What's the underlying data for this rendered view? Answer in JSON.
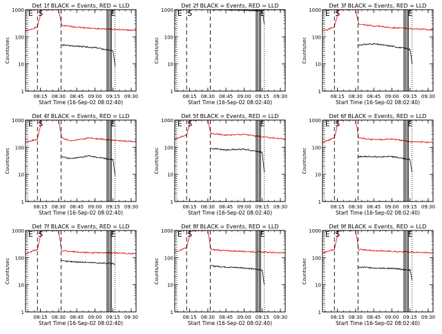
{
  "chart_data": [
    {
      "type": "line",
      "title": "Det 1f BLACK = Events, RED = LLD",
      "ylabel": "Counts/sec",
      "xlabel": "Start Time (16-Sep-02 08:02:40)",
      "xticks": [
        "08:15",
        "08:30",
        "08:45",
        "09:00",
        "09:15",
        "09:30"
      ],
      "xlim": [
        "08:02:40",
        "09:34:00"
      ],
      "yscale": "log",
      "ylim": [
        1,
        1000
      ],
      "yticks": [
        "1",
        "10",
        "100",
        "1000"
      ],
      "markers": [
        {
          "label": "E",
          "time": "08:04:20",
          "style": "dotted"
        },
        {
          "label": "S",
          "time": "08:12:30",
          "style": "dashed"
        },
        {
          "label": "",
          "time": "08:32:00",
          "style": "dashed"
        },
        {
          "label": "",
          "time": "09:10:00",
          "style": "solid"
        },
        {
          "label": "E",
          "time": "09:12:30",
          "style": "solid"
        },
        {
          "label": "",
          "time": "09:16:40",
          "style": "dotted"
        }
      ],
      "series": [
        {
          "color": "#e00000",
          "x": [
            "08:02:40",
            "08:12:30",
            "08:16:00",
            "08:30:00",
            "08:32:30",
            "08:45:00",
            "09:00:00",
            "09:15:00",
            "09:34:00"
          ],
          "y": [
            160,
            230,
            1000,
            1000,
            260,
            230,
            200,
            190,
            170
          ]
        },
        {
          "color": "#000000",
          "x": [
            "08:32:30",
            "08:45:00",
            "09:00:00",
            "09:15:00",
            "09:16:40"
          ],
          "y": [
            50,
            45,
            40,
            30,
            8
          ]
        }
      ]
    },
    {
      "type": "line",
      "title": "Det 2f BLACK = Events, RED = LLD",
      "ylabel": "Counts/sec",
      "xlabel": "Start Time (16-Sep-02 08:02:40)",
      "xticks": [
        "08:15",
        "08:30",
        "08:45",
        "09:00",
        "09:15",
        "09:30"
      ],
      "xlim": [
        "08:02:40",
        "09:34:00"
      ],
      "yscale": "log",
      "ylim": [
        1,
        1000
      ],
      "yticks": [
        "1",
        "10",
        "100",
        "1000"
      ],
      "markers": [
        {
          "label": "E",
          "time": "08:04:20",
          "style": "dotted"
        },
        {
          "label": "S",
          "time": "08:12:30",
          "style": "dashed"
        },
        {
          "label": "",
          "time": "08:32:00",
          "style": "dashed"
        },
        {
          "label": "",
          "time": "09:10:00",
          "style": "solid"
        },
        {
          "label": "E",
          "time": "09:12:30",
          "style": "solid"
        },
        {
          "label": "",
          "time": "09:16:40",
          "style": "dotted"
        }
      ],
      "series": [
        {
          "color": "#e00000",
          "x": [
            "08:02:40",
            "08:12:30",
            "08:16:00",
            "08:30:00",
            "08:32:30",
            "09:00:00",
            "09:34:00"
          ],
          "y": [
            1000,
            1100,
            1400,
            1400,
            1100,
            1000,
            1000
          ]
        },
        {
          "color": "#000000",
          "x": [
            "08:32:30",
            "09:00:00",
            "09:15:00",
            "09:16:40"
          ],
          "y": [
            1000,
            950,
            900,
            300
          ]
        }
      ]
    },
    {
      "type": "line",
      "title": "Det 3f BLACK = Events, RED = LLD",
      "ylabel": "Counts/sec",
      "xlabel": "Start Time (16-Sep-02 08:02:40)",
      "xticks": [
        "08:15",
        "08:30",
        "08:45",
        "09:00",
        "09:15",
        "09:30"
      ],
      "xlim": [
        "08:02:40",
        "09:34:00"
      ],
      "yscale": "log",
      "ylim": [
        1,
        1000
      ],
      "yticks": [
        "1",
        "10",
        "100",
        "1000"
      ],
      "markers": [
        {
          "label": "E",
          "time": "08:04:20",
          "style": "dotted"
        },
        {
          "label": "S",
          "time": "08:12:30",
          "style": "dashed"
        },
        {
          "label": "",
          "time": "08:32:00",
          "style": "dashed"
        },
        {
          "label": "",
          "time": "09:10:00",
          "style": "solid"
        },
        {
          "label": "E",
          "time": "09:12:30",
          "style": "solid"
        },
        {
          "label": "",
          "time": "09:16:40",
          "style": "dotted"
        }
      ],
      "series": [
        {
          "color": "#e00000",
          "x": [
            "08:02:40",
            "08:12:30",
            "08:16:00",
            "08:30:00",
            "08:32:30",
            "08:45:00",
            "09:00:00",
            "09:15:00",
            "09:34:00"
          ],
          "y": [
            160,
            230,
            1000,
            1000,
            300,
            250,
            220,
            200,
            180
          ]
        },
        {
          "color": "#000000",
          "x": [
            "08:32:30",
            "08:45:00",
            "09:00:00",
            "09:15:00",
            "09:16:40"
          ],
          "y": [
            50,
            55,
            45,
            35,
            10
          ]
        }
      ]
    },
    {
      "type": "line",
      "title": "Det 4f BLACK = Events, RED = LLD",
      "ylabel": "Counts/sec",
      "xlabel": "Start Time (16-Sep-02 08:02:40)",
      "xticks": [
        "08:15",
        "08:30",
        "08:45",
        "09:00",
        "09:15",
        "09:30"
      ],
      "xlim": [
        "08:02:40",
        "09:34:00"
      ],
      "yscale": "log",
      "ylim": [
        1,
        1000
      ],
      "yticks": [
        "1",
        "10",
        "100",
        "1000"
      ],
      "markers": [
        {
          "label": "E",
          "time": "08:04:20",
          "style": "dotted"
        },
        {
          "label": "S",
          "time": "08:12:30",
          "style": "dashed"
        },
        {
          "label": "",
          "time": "08:32:00",
          "style": "dashed"
        },
        {
          "label": "",
          "time": "09:10:00",
          "style": "solid"
        },
        {
          "label": "E",
          "time": "09:12:30",
          "style": "solid"
        },
        {
          "label": "",
          "time": "09:16:40",
          "style": "dotted"
        }
      ],
      "series": [
        {
          "color": "#e00000",
          "x": [
            "08:02:40",
            "08:12:30",
            "08:16:00",
            "08:30:00",
            "08:32:30",
            "08:40:00",
            "08:55:00",
            "09:15:00",
            "09:34:00"
          ],
          "y": [
            150,
            200,
            1000,
            1000,
            220,
            170,
            220,
            180,
            160
          ]
        },
        {
          "color": "#000000",
          "x": [
            "08:32:30",
            "08:40:00",
            "08:55:00",
            "09:15:00",
            "09:16:40"
          ],
          "y": [
            45,
            38,
            48,
            35,
            9
          ]
        }
      ]
    },
    {
      "type": "line",
      "title": "Det 5f BLACK = Events, RED = LLD",
      "ylabel": "Counts/sec",
      "xlabel": "Start Time (16-Sep-02 08:02:40)",
      "xticks": [
        "08:15",
        "08:30",
        "08:45",
        "09:00",
        "09:15",
        "09:30"
      ],
      "xlim": [
        "08:02:40",
        "09:34:00"
      ],
      "yscale": "log",
      "ylim": [
        1,
        1000
      ],
      "yticks": [
        "1",
        "10",
        "100",
        "1000"
      ],
      "markers": [
        {
          "label": "E",
          "time": "08:04:20",
          "style": "dotted"
        },
        {
          "label": "S",
          "time": "08:12:30",
          "style": "dashed"
        },
        {
          "label": "",
          "time": "08:32:00",
          "style": "dashed"
        },
        {
          "label": "",
          "time": "09:10:00",
          "style": "solid"
        },
        {
          "label": "E",
          "time": "09:12:30",
          "style": "solid"
        },
        {
          "label": "",
          "time": "09:16:40",
          "style": "dotted"
        }
      ],
      "series": [
        {
          "color": "#e00000",
          "x": [
            "08:02:40",
            "08:12:30",
            "08:16:00",
            "08:30:00",
            "08:32:30",
            "08:45:00",
            "09:00:00",
            "09:15:00",
            "09:34:00"
          ],
          "y": [
            200,
            280,
            1000,
            1000,
            320,
            280,
            300,
            240,
            200
          ]
        },
        {
          "color": "#000000",
          "x": [
            "08:32:30",
            "08:45:00",
            "09:00:00",
            "09:15:00",
            "09:16:40"
          ],
          "y": [
            90,
            80,
            85,
            65,
            12
          ]
        }
      ]
    },
    {
      "type": "line",
      "title": "Det 6f BLACK = Events, RED = LLD",
      "ylabel": "Counts/sec",
      "xlabel": "Start Time (16-Sep-02 08:02:40)",
      "xticks": [
        "08:15",
        "08:30",
        "08:45",
        "09:00",
        "09:15",
        "09:30"
      ],
      "xlim": [
        "08:02:40",
        "09:34:00"
      ],
      "yscale": "log",
      "ylim": [
        1,
        1000
      ],
      "yticks": [
        "1",
        "10",
        "100",
        "1000"
      ],
      "markers": [
        {
          "label": "E",
          "time": "08:04:20",
          "style": "dotted"
        },
        {
          "label": "S",
          "time": "08:12:30",
          "style": "dashed"
        },
        {
          "label": "",
          "time": "08:32:00",
          "style": "dashed"
        },
        {
          "label": "",
          "time": "09:10:00",
          "style": "solid"
        },
        {
          "label": "E",
          "time": "09:12:30",
          "style": "solid"
        },
        {
          "label": "",
          "time": "09:16:40",
          "style": "dotted"
        }
      ],
      "series": [
        {
          "color": "#e00000",
          "x": [
            "08:02:40",
            "08:12:30",
            "08:16:00",
            "08:30:00",
            "08:32:30",
            "08:45:00",
            "09:00:00",
            "09:15:00",
            "09:34:00"
          ],
          "y": [
            150,
            220,
            1000,
            1000,
            220,
            190,
            200,
            160,
            150
          ]
        },
        {
          "color": "#000000",
          "x": [
            "08:32:30",
            "08:45:00",
            "09:00:00",
            "09:15:00",
            "09:16:40"
          ],
          "y": [
            45,
            45,
            45,
            35,
            12
          ]
        }
      ]
    },
    {
      "type": "line",
      "title": "Det 7f BLACK = Events, RED = LLD",
      "ylabel": "Counts/sec",
      "xlabel": "Start Time (16-Sep-02 08:02:40)",
      "xticks": [
        "08:15",
        "08:30",
        "08:45",
        "09:00",
        "09:15",
        "09:30"
      ],
      "xlim": [
        "08:02:40",
        "09:34:00"
      ],
      "yscale": "log",
      "ylim": [
        1,
        1000
      ],
      "yticks": [
        "1",
        "10",
        "100",
        "1000"
      ],
      "markers": [
        {
          "label": "E",
          "time": "08:04:20",
          "style": "dotted"
        },
        {
          "label": "S",
          "time": "08:12:30",
          "style": "dashed"
        },
        {
          "label": "",
          "time": "08:32:00",
          "style": "dashed"
        },
        {
          "label": "",
          "time": "09:10:00",
          "style": "solid"
        },
        {
          "label": "E",
          "time": "09:12:30",
          "style": "solid"
        },
        {
          "label": "",
          "time": "09:16:40",
          "style": "dotted"
        }
      ],
      "series": [
        {
          "color": "#e00000",
          "x": [
            "08:02:40",
            "08:12:30",
            "08:16:00",
            "08:30:00",
            "08:32:30",
            "08:45:00",
            "09:00:00",
            "09:15:00",
            "09:34:00"
          ],
          "y": [
            140,
            200,
            1000,
            1000,
            180,
            160,
            150,
            150,
            140
          ]
        },
        {
          "color": "#000000",
          "x": [
            "08:32:30",
            "08:45:00",
            "09:00:00",
            "09:15:00",
            "09:16:40"
          ],
          "y": [
            75,
            70,
            65,
            60,
            55
          ]
        }
      ]
    },
    {
      "type": "line",
      "title": "Det 8f BLACK = Events, RED = LLD",
      "ylabel": "Counts/sec",
      "xlabel": "Start Time (16-Sep-02 08:02:40)",
      "xticks": [
        "08:15",
        "08:30",
        "08:45",
        "09:00",
        "09:15",
        "09:30"
      ],
      "xlim": [
        "08:02:40",
        "09:34:00"
      ],
      "yscale": "log",
      "ylim": [
        1,
        1000
      ],
      "yticks": [
        "1",
        "10",
        "100",
        "1000"
      ],
      "markers": [
        {
          "label": "E",
          "time": "08:04:20",
          "style": "dotted"
        },
        {
          "label": "S",
          "time": "08:12:30",
          "style": "dashed"
        },
        {
          "label": "",
          "time": "08:32:00",
          "style": "dashed"
        },
        {
          "label": "",
          "time": "09:10:00",
          "style": "solid"
        },
        {
          "label": "E",
          "time": "09:12:30",
          "style": "solid"
        },
        {
          "label": "",
          "time": "09:16:40",
          "style": "dotted"
        }
      ],
      "series": [
        {
          "color": "#e00000",
          "x": [
            "08:02:40",
            "08:12:30",
            "08:16:00",
            "08:30:00",
            "08:32:30",
            "08:45:00",
            "09:00:00",
            "09:15:00",
            "09:34:00"
          ],
          "y": [
            160,
            230,
            1000,
            1000,
            200,
            180,
            170,
            160,
            150
          ]
        },
        {
          "color": "#000000",
          "x": [
            "08:32:30",
            "08:45:00",
            "09:00:00",
            "09:15:00",
            "09:16:40"
          ],
          "y": [
            50,
            45,
            42,
            35,
            10
          ]
        }
      ]
    },
    {
      "type": "line",
      "title": "Det 9f BLACK = Events, RED = LLD",
      "ylabel": "Counts/sec",
      "xlabel": "Start Time (16-Sep-02 08:02:40)",
      "xticks": [
        "08:15",
        "08:30",
        "08:45",
        "09:00",
        "09:15",
        "09:30"
      ],
      "xlim": [
        "08:02:40",
        "09:34:00"
      ],
      "yscale": "log",
      "ylim": [
        1,
        1000
      ],
      "yticks": [
        "1",
        "10",
        "100",
        "1000"
      ],
      "markers": [
        {
          "label": "E",
          "time": "08:04:20",
          "style": "dotted"
        },
        {
          "label": "S",
          "time": "08:12:30",
          "style": "dashed"
        },
        {
          "label": "",
          "time": "08:32:00",
          "style": "dashed"
        },
        {
          "label": "",
          "time": "09:10:00",
          "style": "solid"
        },
        {
          "label": "E",
          "time": "09:12:30",
          "style": "solid"
        },
        {
          "label": "",
          "time": "09:16:40",
          "style": "dotted"
        }
      ],
      "series": [
        {
          "color": "#e00000",
          "x": [
            "08:02:40",
            "08:12:30",
            "08:16:00",
            "08:30:00",
            "08:32:30",
            "08:45:00",
            "09:00:00",
            "09:15:00",
            "09:34:00"
          ],
          "y": [
            150,
            200,
            1000,
            1000,
            200,
            180,
            170,
            160,
            150
          ]
        },
        {
          "color": "#000000",
          "x": [
            "08:32:30",
            "08:45:00",
            "09:00:00",
            "09:15:00",
            "09:16:40"
          ],
          "y": [
            45,
            42,
            40,
            35,
            15
          ]
        }
      ]
    }
  ]
}
